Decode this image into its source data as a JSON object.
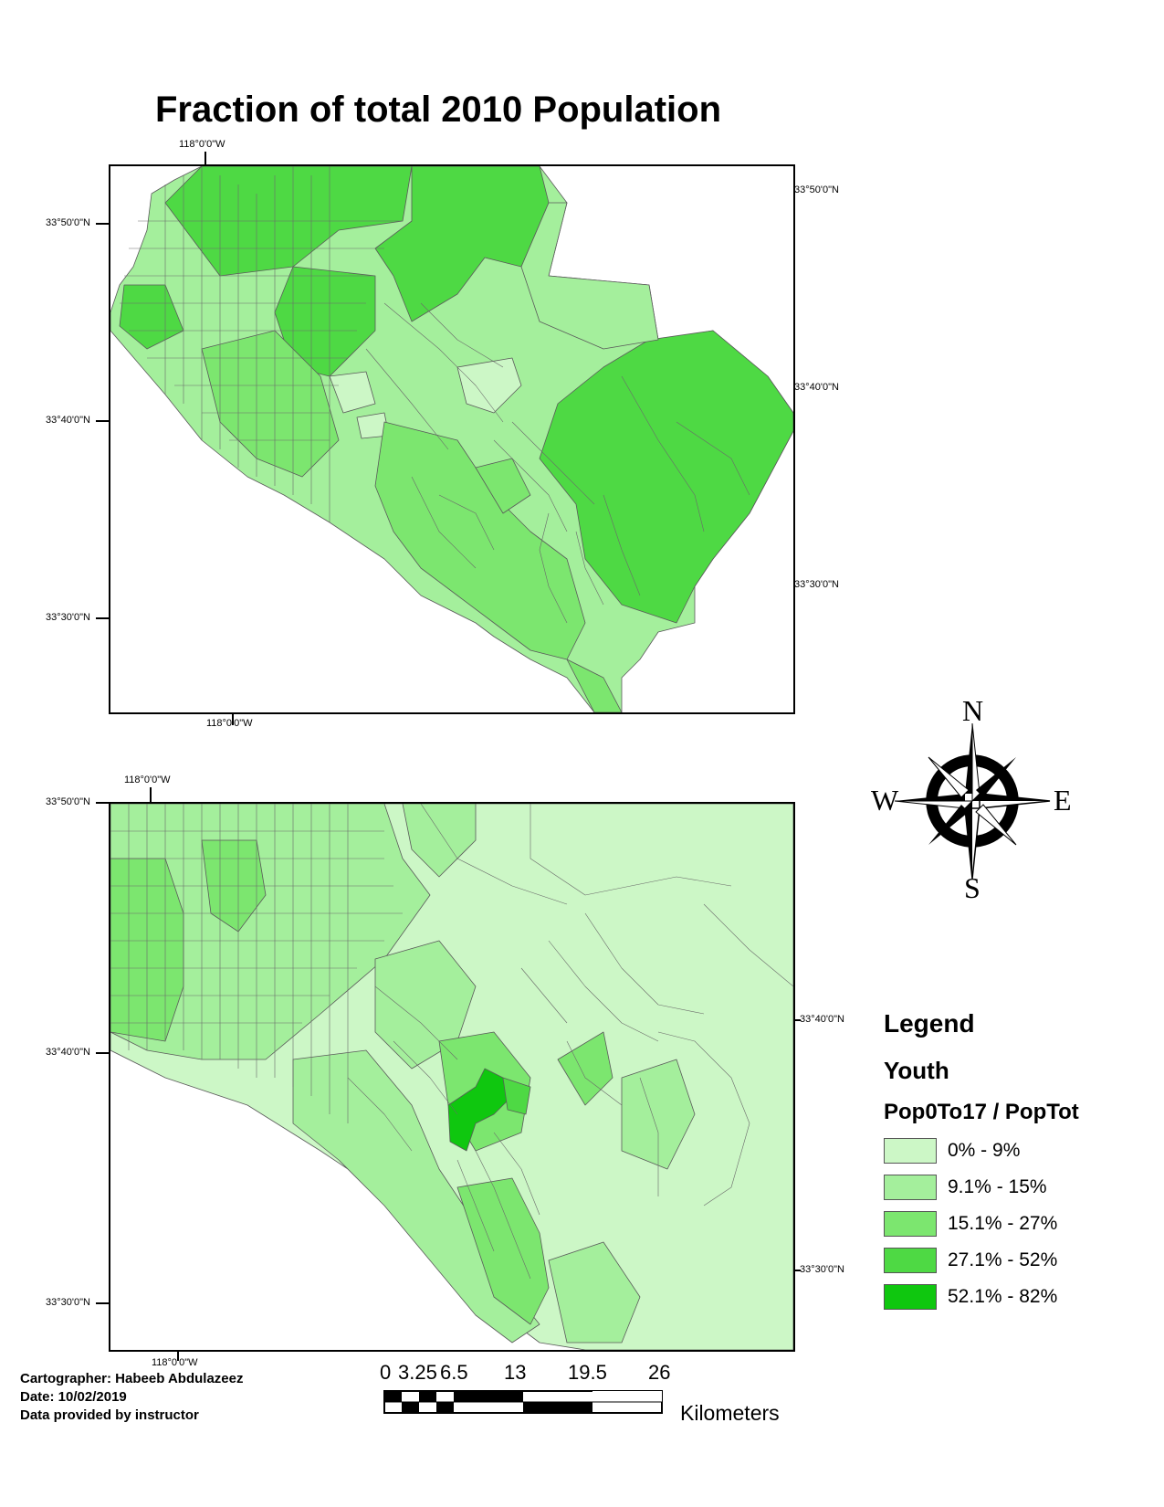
{
  "title": "Fraction of total 2010 Population",
  "colors": {
    "class1": "#ccf7c6",
    "class2": "#a4ef9c",
    "class3": "#7ce66f",
    "class4": "#4ed944",
    "class5": "#0fc70f",
    "border": "#555555"
  },
  "map_top": {
    "graticule": {
      "top_lon": "118°0'0\"W",
      "bottom_lon": "118°0'0\"W",
      "left_lats": [
        "33°50'0\"N",
        "33°40'0\"N",
        "33°30'0\"N"
      ],
      "right_lats": [
        "33°50'0\"N",
        "33°40'0\"N",
        "33°30'0\"N"
      ]
    }
  },
  "map_bottom": {
    "graticule": {
      "top_lon": "118°0'0\"W",
      "bottom_lon": "118°0'0\"W",
      "left_lats": [
        "33°50'0\"N",
        "33°40'0\"N",
        "33°30'0\"N"
      ],
      "right_lats": [
        "33°40'0\"N",
        "33°30'0\"N"
      ]
    }
  },
  "compass": {
    "n": "N",
    "s": "S",
    "e": "E",
    "w": "W"
  },
  "legend": {
    "title": "Legend",
    "layer": "Youth",
    "field": "Pop0To17 / PopTot",
    "classes": [
      {
        "label": "0% - 9%",
        "color": "#ccf7c6"
      },
      {
        "label": "9.1% - 15%",
        "color": "#a4ef9c"
      },
      {
        "label": "15.1% - 27%",
        "color": "#7ce66f"
      },
      {
        "label": "27.1% - 52%",
        "color": "#4ed944"
      },
      {
        "label": "52.1% - 82%",
        "color": "#0fc70f"
      }
    ]
  },
  "credits": {
    "cartographer": "Cartographer: Habeeb Abdulazeez",
    "date": "Date: 10/02/2019",
    "source": "Data provided by instructor"
  },
  "scale_bar": {
    "labels": [
      "0",
      "3.25",
      "6.5",
      "13",
      "19.5",
      "26"
    ],
    "unit": "Kilometers"
  }
}
